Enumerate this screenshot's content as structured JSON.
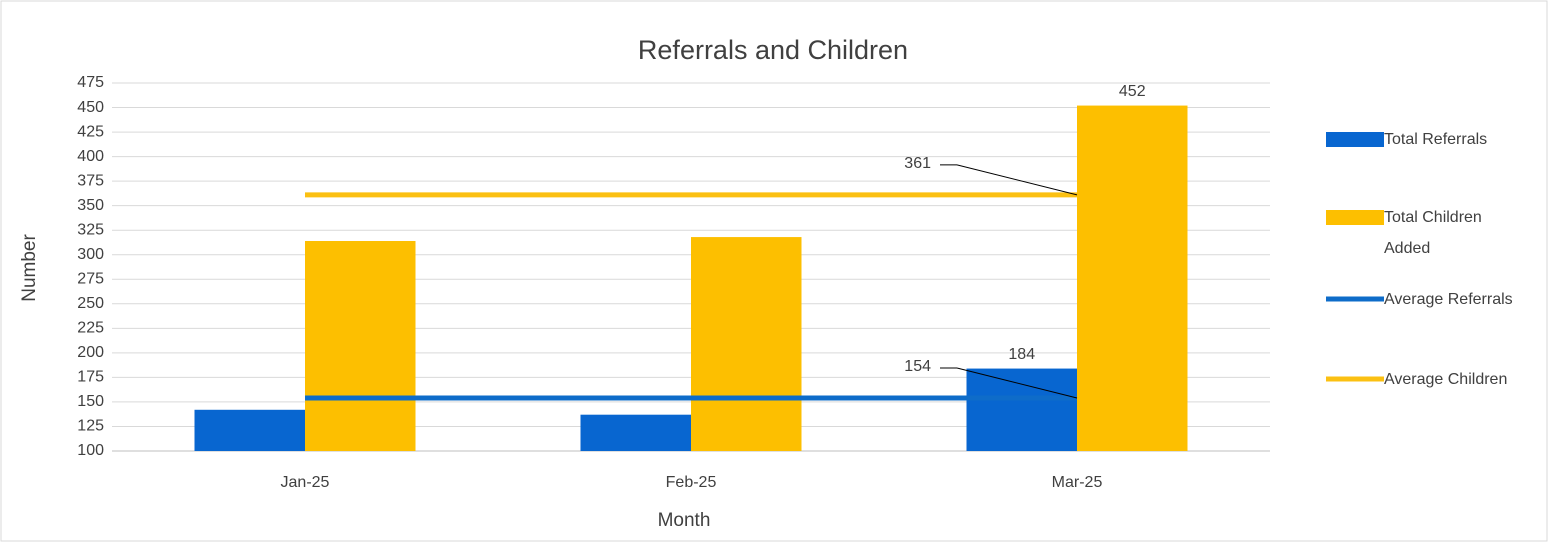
{
  "chart_data": {
    "type": "bar",
    "title": "Referrals and Children",
    "x_label": "Month",
    "y_label": "Number",
    "categories": [
      "Jan-25",
      "Feb-25",
      "Mar-25"
    ],
    "series": [
      {
        "name": "Total Referrals",
        "type": "bar",
        "color": "#0866d0",
        "values": [
          142,
          137,
          184
        ],
        "data_labels": [
          false,
          false,
          true
        ]
      },
      {
        "name": "Total Children Added",
        "type": "bar",
        "color": "#fdbf00",
        "values": [
          314,
          318,
          452
        ],
        "data_labels": [
          false,
          false,
          true
        ]
      },
      {
        "name": "Average Referrals",
        "type": "line",
        "color": "#0e6cc9",
        "values": [
          154,
          154,
          154
        ],
        "data_labels": [
          false,
          false,
          true
        ]
      },
      {
        "name": "Average Children",
        "type": "line",
        "color": "#fbc012",
        "values": [
          361,
          361,
          361
        ],
        "data_labels": [
          false,
          false,
          true
        ]
      }
    ],
    "ylim": [
      100,
      475
    ],
    "yticks": [
      100,
      125,
      150,
      175,
      200,
      225,
      250,
      275,
      300,
      325,
      350,
      375,
      400,
      425,
      450,
      475
    ],
    "grid": true,
    "legend": "right"
  }
}
